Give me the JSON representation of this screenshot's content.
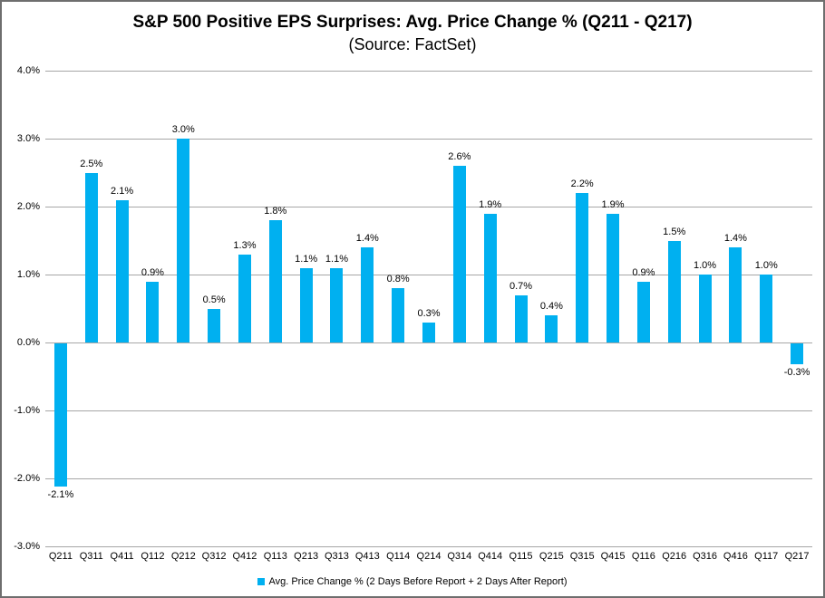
{
  "title": "S&P 500 Positive EPS Surprises: Avg. Price Change % (Q211 - Q217)",
  "subtitle": "(Source: FactSet)",
  "legend": {
    "label": "Avg. Price Change % (2 Days Before Report + 2 Days After Report)"
  },
  "colors": {
    "bar": "#00B0F0",
    "gridline": "#a6a6a6",
    "text": "#000000",
    "border": "#6e6e6e"
  },
  "chart_data": {
    "type": "bar",
    "title": "S&P 500 Positive EPS Surprises: Avg. Price Change % (Q211 - Q217)",
    "subtitle": "(Source: FactSet)",
    "categories": [
      "Q211",
      "Q311",
      "Q411",
      "Q112",
      "Q212",
      "Q312",
      "Q412",
      "Q113",
      "Q213",
      "Q313",
      "Q413",
      "Q114",
      "Q214",
      "Q314",
      "Q414",
      "Q115",
      "Q215",
      "Q315",
      "Q415",
      "Q116",
      "Q216",
      "Q316",
      "Q416",
      "Q117",
      "Q217"
    ],
    "values": [
      -2.1,
      2.5,
      2.1,
      0.9,
      3.0,
      0.5,
      1.3,
      1.8,
      1.1,
      1.1,
      1.4,
      0.8,
      0.3,
      2.6,
      1.9,
      0.7,
      0.4,
      2.2,
      1.9,
      0.9,
      1.5,
      1.0,
      1.4,
      1.0,
      -0.3
    ],
    "data_labels": [
      "-2.1%",
      "2.5%",
      "2.1%",
      "0.9%",
      "3.0%",
      "0.5%",
      "1.3%",
      "1.8%",
      "1.1%",
      "1.1%",
      "1.4%",
      "0.8%",
      "0.3%",
      "2.6%",
      "1.9%",
      "0.7%",
      "0.4%",
      "2.2%",
      "1.9%",
      "0.9%",
      "1.5%",
      "1.0%",
      "1.4%",
      "1.0%",
      "-0.3%"
    ],
    "xlabel": "",
    "ylabel": "",
    "ylim": [
      -3.0,
      4.0
    ],
    "y_tick_values": [
      4,
      3,
      2,
      1,
      0,
      -1,
      -2,
      -3
    ],
    "y_tick_labels": [
      "4.0%",
      "3.0%",
      "2.0%",
      "1.0%",
      "0.0%",
      "-1.0%",
      "-2.0%",
      "-3.0%"
    ],
    "grid": "horizontal",
    "legend_position": "bottom",
    "legend_entries": [
      "Avg. Price Change % (2 Days Before Report + 2 Days After Report)"
    ]
  }
}
